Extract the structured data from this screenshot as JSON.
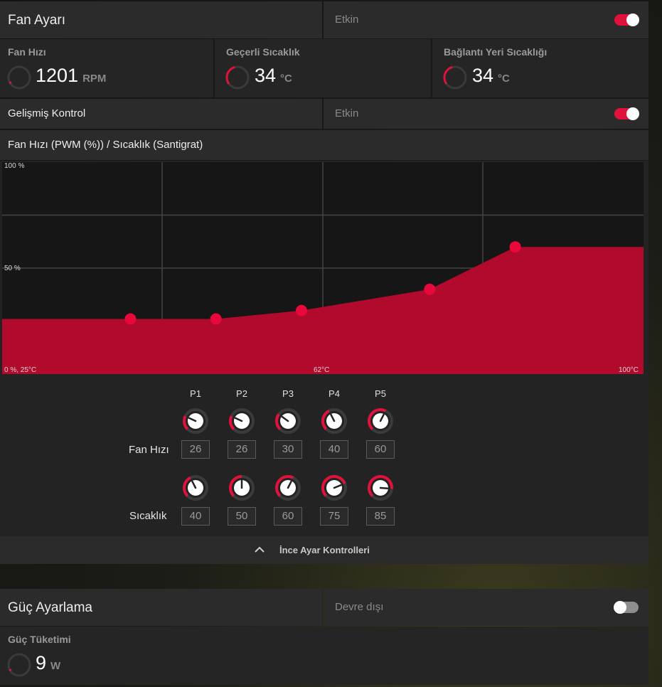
{
  "fan_settings": {
    "title": "Fan Ayarı",
    "status": "Etkin",
    "enabled": true
  },
  "stats": {
    "fan_speed": {
      "label": "Fan Hızı",
      "value": "1201",
      "unit": "RPM"
    },
    "current_temp": {
      "label": "Geçerli Sıcaklık",
      "value": "34",
      "unit": "°C"
    },
    "junction_temp": {
      "label": "Bağlantı Yeri Sıcaklığı",
      "value": "34",
      "unit": "°C"
    }
  },
  "advanced_control": {
    "label": "Gelişmiş Kontrol",
    "status": "Etkin",
    "enabled": true
  },
  "chart_header": "Fan Hızı (PWM (%)) / Sıcaklık (Santigrat)",
  "chart_data": {
    "type": "area",
    "title": "Fan Hızı (PWM (%)) / Sıcaklık (Santigrat)",
    "xlabel": "",
    "ylabel": "",
    "xlim": [
      25,
      100
    ],
    "ylim": [
      0,
      100
    ],
    "ytick_labels": [
      "100 %",
      "50 %"
    ],
    "origin_label": "0 %, 25°C",
    "xtick_labels": [
      "62°C",
      "100°C"
    ],
    "x": [
      40,
      50,
      60,
      75,
      85
    ],
    "y": [
      26,
      26,
      30,
      40,
      60
    ],
    "grid": true,
    "fill_color": "#b20a2c",
    "point_color": "#e8083a"
  },
  "points": {
    "labels": [
      "P1",
      "P2",
      "P3",
      "P4",
      "P5"
    ],
    "fan_speed_label": "Fan Hızı",
    "fan_speed_values": [
      "26",
      "26",
      "30",
      "40",
      "60"
    ],
    "temperature_label": "Sıcaklık",
    "temperature_values": [
      "40",
      "50",
      "60",
      "75",
      "85"
    ]
  },
  "fine_tune": {
    "label": "İnce Ayar Kontrolleri",
    "icon": "chevron-up-icon"
  },
  "power": {
    "title": "Güç Ayarlama",
    "status": "Devre dışı",
    "enabled": false,
    "consumption_label": "Güç Tüketimi",
    "consumption_value": "9",
    "consumption_unit": "W"
  },
  "colors": {
    "accent": "#e0113a",
    "panel": "#252525"
  }
}
